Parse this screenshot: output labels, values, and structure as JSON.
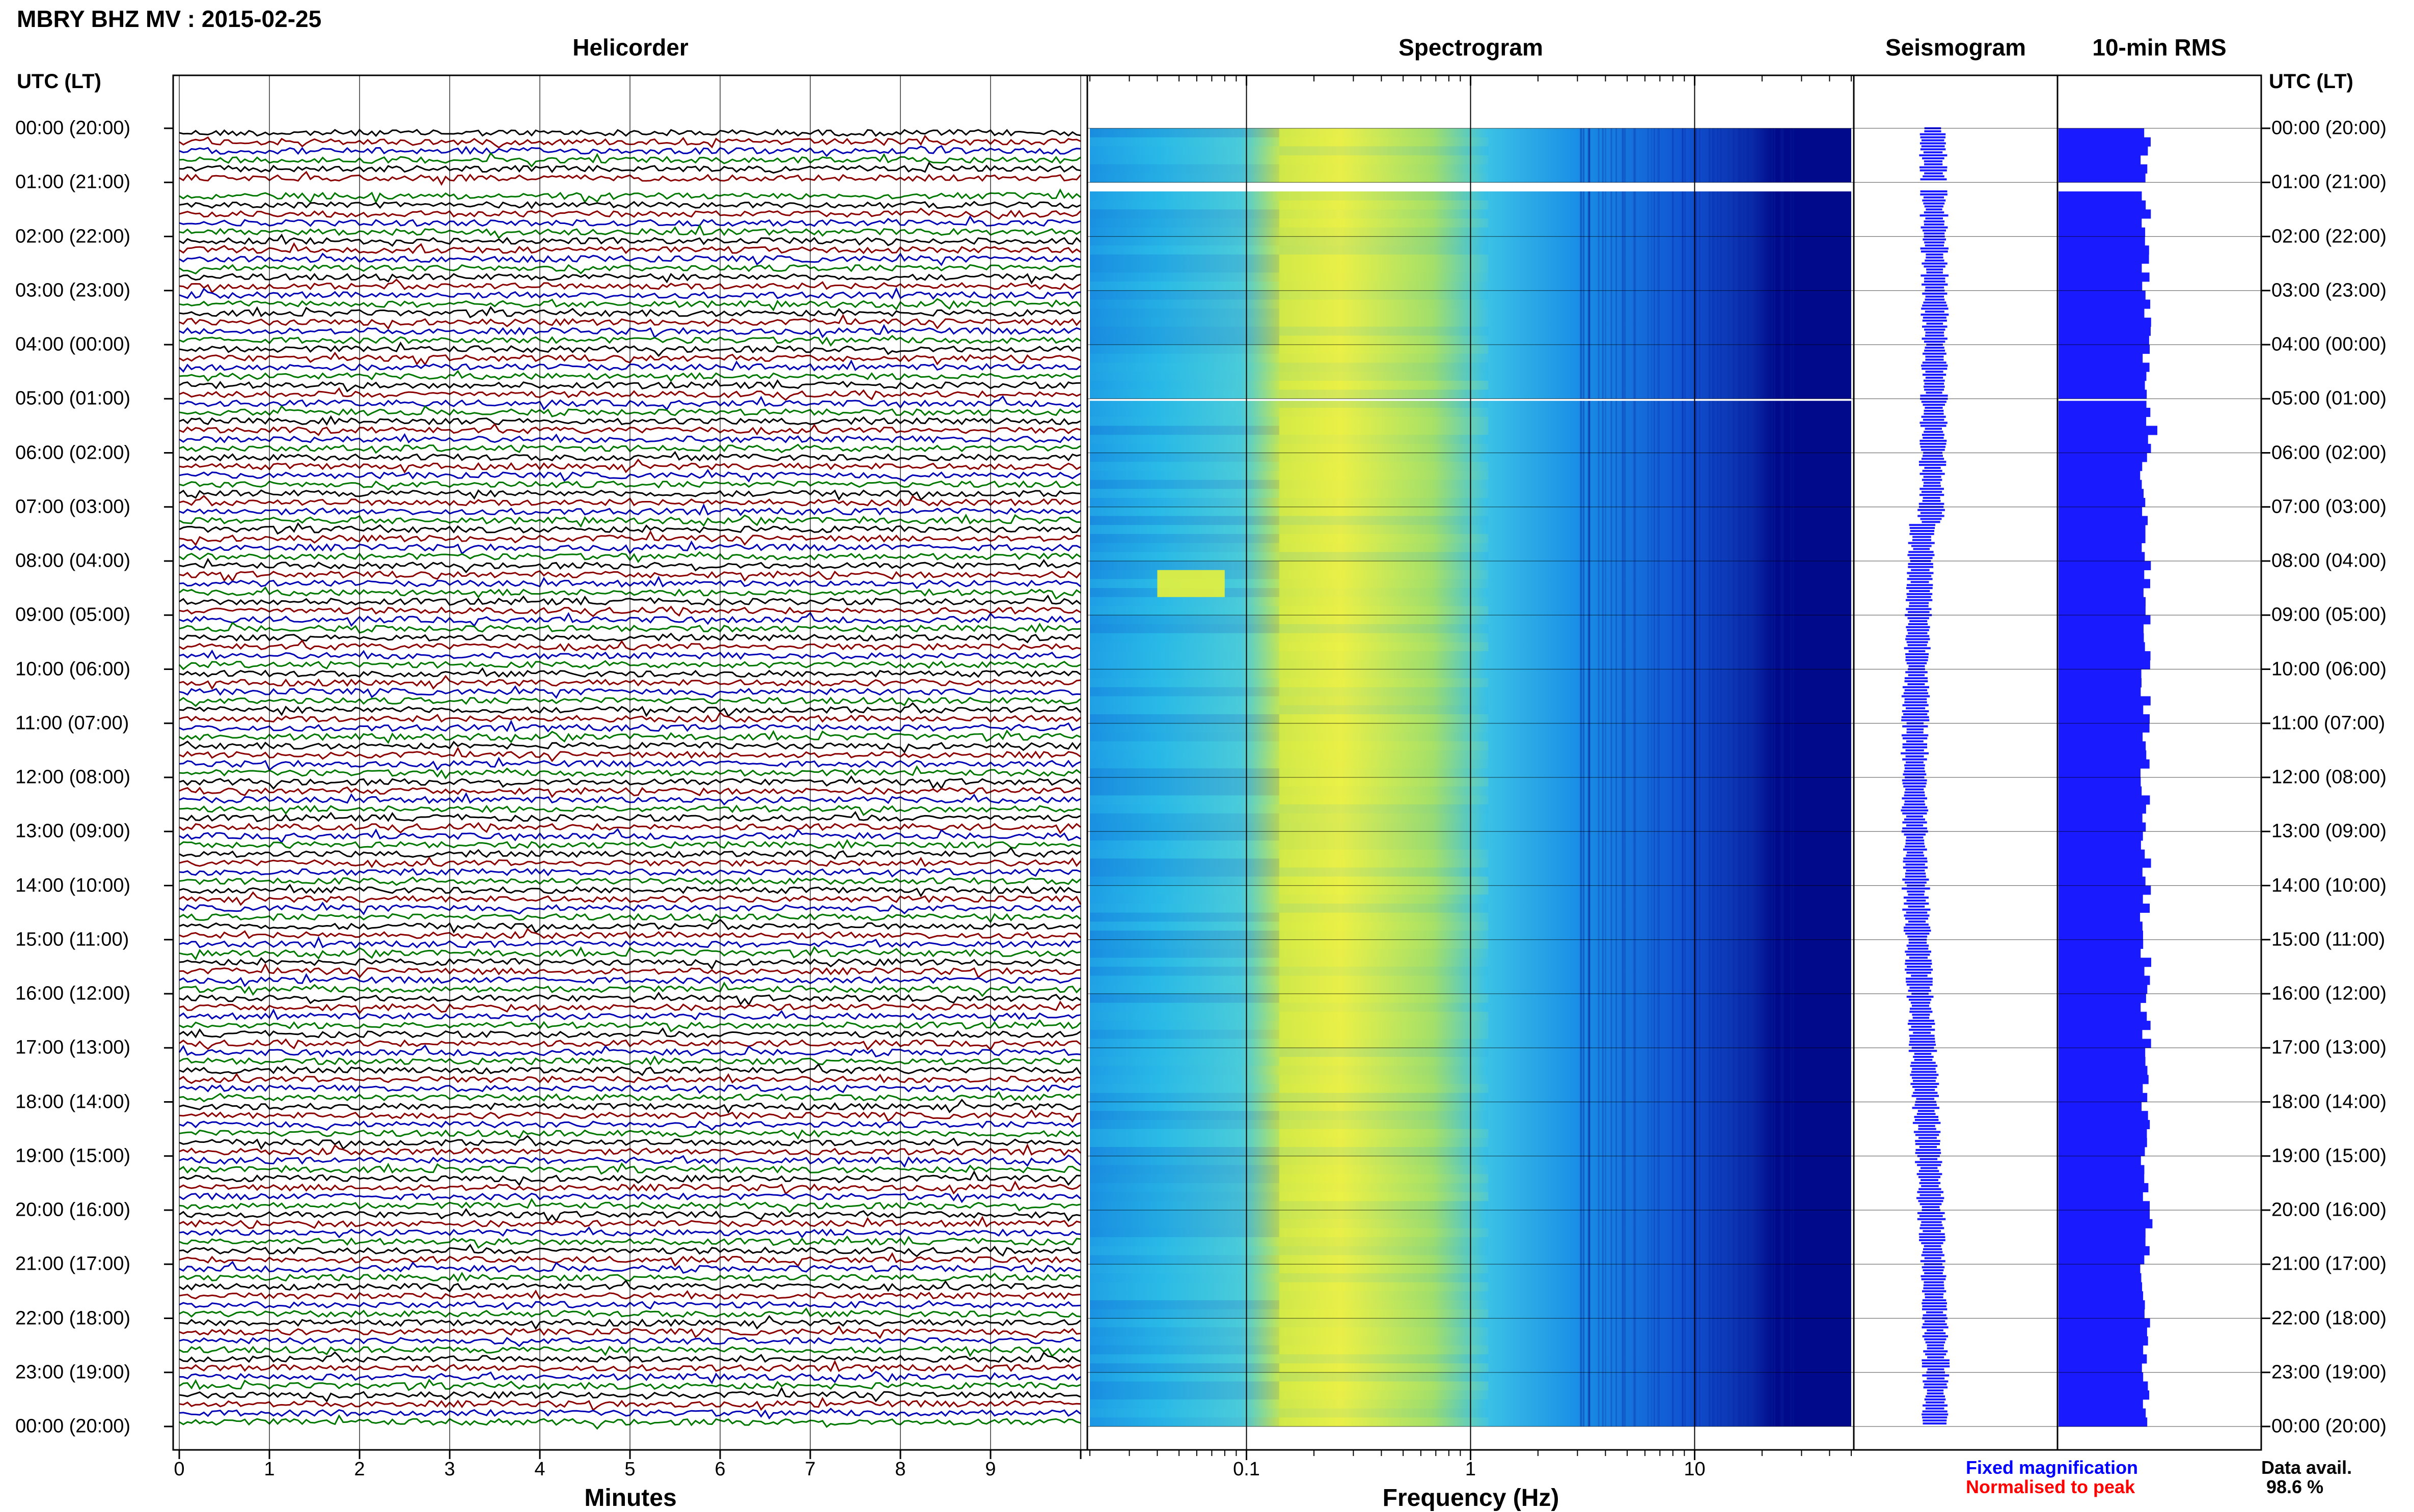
{
  "title": "MBRY BHZ MV : 2015-02-25",
  "panels": {
    "helicorder": "Helicorder",
    "spectrogram": "Spectrogram",
    "seismogram": "Seismogram",
    "rms": "10-min RMS"
  },
  "axis_header_left": "UTC (LT)",
  "axis_header_right": "UTC (LT)",
  "row_labels": [
    "00:00 (20:00)",
    "01:00 (21:00)",
    "02:00 (22:00)",
    "03:00 (23:00)",
    "04:00 (00:00)",
    "05:00 (01:00)",
    "06:00 (02:00)",
    "07:00 (03:00)",
    "08:00 (04:00)",
    "09:00 (05:00)",
    "10:00 (06:00)",
    "11:00 (07:00)",
    "12:00 (08:00)",
    "13:00 (09:00)",
    "14:00 (10:00)",
    "15:00 (11:00)",
    "16:00 (12:00)",
    "17:00 (13:00)",
    "18:00 (14:00)",
    "19:00 (15:00)",
    "20:00 (16:00)",
    "21:00 (17:00)",
    "22:00 (18:00)",
    "23:00 (19:00)",
    "00:00 (20:00)"
  ],
  "minutes_ticks": [
    "0",
    "1",
    "2",
    "3",
    "4",
    "5",
    "6",
    "7",
    "8",
    "9"
  ],
  "minutes_label": "Minutes",
  "freq_ticks": [
    "0.1",
    "1",
    "10"
  ],
  "freq_label": "Frequency (Hz)",
  "legend": {
    "fixed": "Fixed magnification",
    "normalised": "Normalised to peak",
    "fixed_color": "#0000ff",
    "normalised_color": "#ff0000"
  },
  "data_avail_label": "Data avail.",
  "data_avail_value": "98.6 %",
  "colors": {
    "trace_cycle": [
      "#000000",
      "#8b0000",
      "#0000b4",
      "#007800"
    ],
    "rms_bar": "#1a1aff",
    "seismogram": "#1a1aff",
    "spec_low": "#00008c",
    "spec_mid": "#00b4ff",
    "spec_high": "#f0f000"
  },
  "chart_data": [
    {
      "type": "line",
      "name": "helicorder",
      "title": "Helicorder",
      "xlabel": "Minutes",
      "x_range_minutes": [
        0,
        10
      ],
      "traces_per_hour": 6,
      "hours": 24,
      "gaps_utc": [
        [
          "01:00",
          "01:10"
        ],
        [
          "05:00",
          "05:02"
        ]
      ],
      "trace_colors_cycle": [
        "black",
        "darkred",
        "blue",
        "green"
      ]
    },
    {
      "type": "heatmap",
      "name": "spectrogram",
      "title": "Spectrogram",
      "xlabel": "Frequency (Hz)",
      "x_scale": "log",
      "x_range_hz": [
        0.02,
        50
      ],
      "colormap": "jet",
      "energy_peak_hz": [
        0.15,
        0.6
      ],
      "feature": {
        "time_utc": "08:10",
        "freq_hz": [
          0.04,
          0.08
        ]
      }
    },
    {
      "type": "line",
      "name": "seismogram",
      "title": "Seismogram",
      "y": "time (UTC 00:00–24:00)",
      "drift": "slow long-period wander, most displaced around 18:00–19:00"
    },
    {
      "type": "bar",
      "name": "10-min RMS",
      "title": "10-min RMS",
      "orientation": "horizontal",
      "bin_minutes": 10,
      "n_bins": 144,
      "note": "near-constant RMS across the day; gap at 01:00–01:10"
    }
  ]
}
